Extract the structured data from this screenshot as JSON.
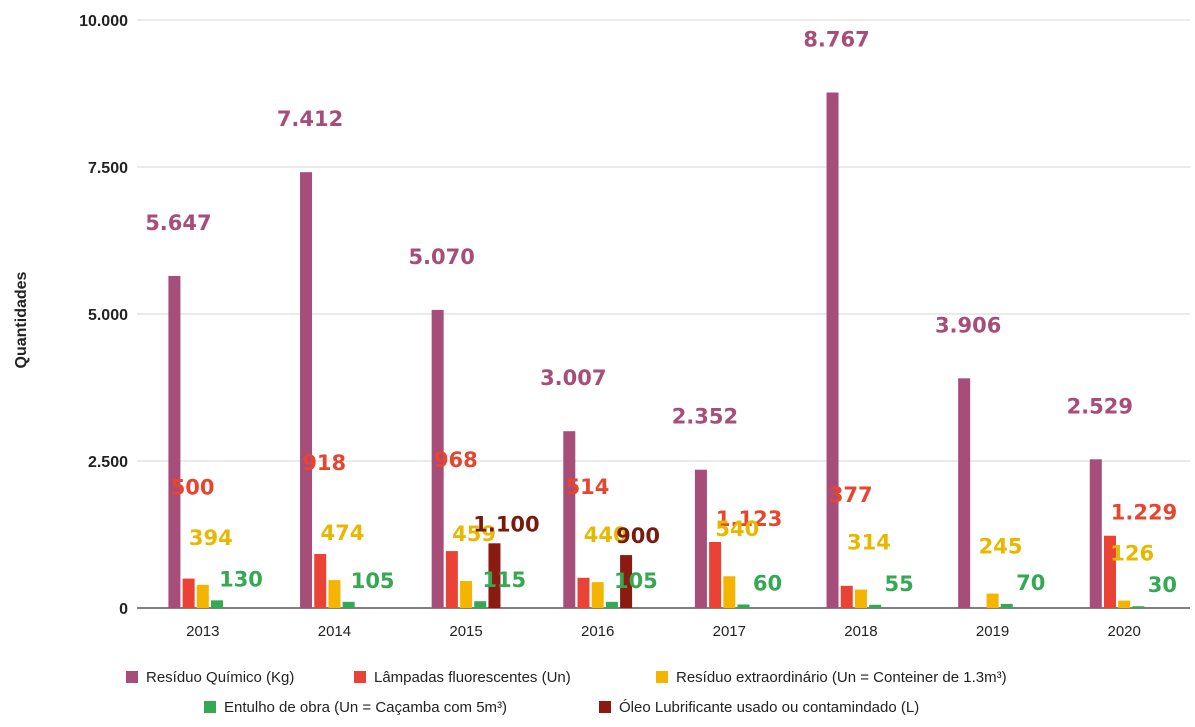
{
  "chart_data": {
    "type": "bar",
    "title": "",
    "xlabel": "",
    "ylabel": "Quantidades",
    "ylim": [
      0,
      10000
    ],
    "yticks": [
      0,
      2500,
      5000,
      7500,
      10000
    ],
    "ytick_labels": [
      "0",
      "2.500",
      "5.000",
      "7.500",
      "10.000"
    ],
    "grid": true,
    "legend_position": "bottom",
    "categories": [
      "2013",
      "2014",
      "2015",
      "2016",
      "2017",
      "2018",
      "2019",
      "2020"
    ],
    "series": [
      {
        "name": "Resíduo Químico (Kg)",
        "color": "#A64D79",
        "values": [
          5647,
          7412,
          5070,
          3007,
          2352,
          8767,
          3906,
          2529
        ],
        "labels": [
          "5.647",
          "7.412",
          "5.070",
          "3.007",
          "2.352",
          "8.767",
          "3.906",
          "2.529"
        ]
      },
      {
        "name": "Lâmpadas fluorescentes (Un)",
        "color": "#EA4335",
        "values": [
          500,
          918,
          968,
          514,
          1123,
          377,
          null,
          1229
        ],
        "labels": [
          "500",
          "918",
          "968",
          "514",
          "1.123",
          "377",
          null,
          "1.229"
        ]
      },
      {
        "name": "Resíduo extraordinário (Un = Conteiner de 1.3m³)",
        "color": "#F4B400",
        "values": [
          394,
          474,
          459,
          440,
          540,
          314,
          245,
          126
        ],
        "labels": [
          "394",
          "474",
          "459",
          "440",
          "540",
          "314",
          "245",
          "126"
        ]
      },
      {
        "name": "Entulho de obra (Un = Caçamba com 5m³)",
        "color": "#34A853",
        "values": [
          130,
          105,
          115,
          105,
          60,
          55,
          70,
          30
        ],
        "labels": [
          "130",
          "105",
          "115",
          "105",
          "60",
          "55",
          "70",
          "30"
        ]
      },
      {
        "name": "Óleo Lubrificante usado ou contamindado (L)",
        "color": "#8B1A10",
        "values": [
          null,
          null,
          1100,
          900,
          null,
          null,
          null,
          null
        ],
        "labels": [
          null,
          null,
          "1.100",
          "900",
          null,
          null,
          null,
          null
        ]
      }
    ]
  }
}
